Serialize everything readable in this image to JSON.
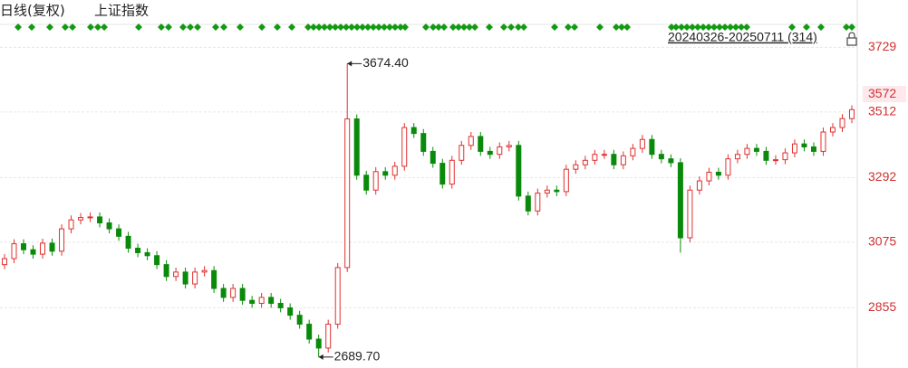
{
  "chart_data": {
    "type": "candlestick",
    "title": "日线(复权)",
    "subtitle": "上证指数",
    "range_label": "20240326-20250711 (314)",
    "up_color": "#e03030",
    "down_color": "#0a8a0a",
    "open": [
      3000,
      3020,
      3070,
      3050,
      3035,
      3072,
      3045,
      3120,
      3150,
      3158,
      3160,
      3140,
      3120,
      3095,
      3055,
      3040,
      3030,
      3000,
      2960,
      2975,
      2935,
      2975,
      2980,
      2920,
      2890,
      2920,
      2880,
      2870,
      2890,
      2870,
      2855,
      2830,
      2800,
      2750,
      2720,
      2800,
      2990,
      3489,
      3300,
      3250,
      3312,
      3300,
      3330,
      3460,
      3440,
      3380,
      3340,
      3270,
      3350,
      3400,
      3430,
      3380,
      3370,
      3395,
      3400,
      3230,
      3180,
      3240,
      3250,
      3245,
      3320,
      3335,
      3350,
      3370,
      3370,
      3335,
      3365,
      3390,
      3420,
      3370,
      3355,
      3342,
      3090,
      3250,
      3281,
      3310,
      3300,
      3355,
      3370,
      3390,
      3380,
      3350,
      3352,
      3375,
      3405,
      3395,
      3380,
      3445,
      3460,
      3490
    ],
    "high": [
      3035,
      3085,
      3085,
      3065,
      3087,
      3087,
      3135,
      3165,
      3173,
      3175,
      3175,
      3155,
      3135,
      3110,
      3070,
      3055,
      3045,
      3015,
      2990,
      2990,
      2990,
      2995,
      2995,
      2935,
      2935,
      2935,
      2895,
      2905,
      2905,
      2885,
      2870,
      2845,
      2815,
      2765,
      2815,
      3005,
      3674.4,
      3504,
      3315,
      3327,
      3327,
      3345,
      3475,
      3475,
      3455,
      3395,
      3355,
      3365,
      3415,
      3445,
      3445,
      3395,
      3410,
      3415,
      3415,
      3245,
      3255,
      3265,
      3265,
      3335,
      3350,
      3365,
      3385,
      3385,
      3385,
      3380,
      3405,
      3435,
      3435,
      3385,
      3370,
      3357,
      3265,
      3296,
      3325,
      3325,
      3370,
      3385,
      3405,
      3405,
      3395,
      3367,
      3390,
      3420,
      3420,
      3410,
      3460,
      3475,
      3505,
      3535
    ],
    "low": [
      2985,
      3005,
      3035,
      3020,
      3020,
      3030,
      3030,
      3105,
      3135,
      3143,
      3125,
      3105,
      3080,
      3040,
      3025,
      3015,
      2985,
      2945,
      2945,
      2920,
      2920,
      2960,
      2905,
      2875,
      2875,
      2865,
      2855,
      2855,
      2855,
      2840,
      2815,
      2785,
      2735,
      2689.7,
      2705,
      2785,
      2975,
      3285,
      3235,
      3235,
      3285,
      3285,
      3315,
      3425,
      3365,
      3325,
      3255,
      3255,
      3335,
      3385,
      3365,
      3355,
      3355,
      3380,
      3215,
      3165,
      3165,
      3225,
      3230,
      3230,
      3305,
      3320,
      3335,
      3355,
      3320,
      3320,
      3350,
      3375,
      3355,
      3340,
      3327,
      3040,
      3075,
      3235,
      3266,
      3285,
      3285,
      3340,
      3355,
      3365,
      3335,
      3335,
      3337,
      3360,
      3380,
      3365,
      3365,
      3430,
      3445,
      3475
    ],
    "close": [
      3020,
      3070,
      3050,
      3035,
      3072,
      3045,
      3120,
      3150,
      3158,
      3160,
      3140,
      3120,
      3095,
      3055,
      3040,
      3030,
      3000,
      2960,
      2975,
      2935,
      2975,
      2980,
      2920,
      2890,
      2920,
      2880,
      2870,
      2890,
      2870,
      2855,
      2830,
      2800,
      2750,
      2720,
      2800,
      2990,
      3489,
      3300,
      3250,
      3312,
      3300,
      3330,
      3460,
      3440,
      3380,
      3340,
      3270,
      3350,
      3400,
      3430,
      3380,
      3370,
      3395,
      3400,
      3230,
      3180,
      3240,
      3250,
      3245,
      3320,
      3335,
      3350,
      3370,
      3370,
      3335,
      3365,
      3390,
      3420,
      3370,
      3355,
      3342,
      3090,
      3250,
      3281,
      3310,
      3300,
      3355,
      3370,
      3390,
      3380,
      3350,
      3352,
      3375,
      3405,
      3395,
      3380,
      3445,
      3460,
      3490,
      3520
    ],
    "ylim": [
      2653,
      3888
    ],
    "yticks": [
      2855,
      3075,
      3292,
      3512,
      3729
    ],
    "price_marker": 3572,
    "annotations": [
      {
        "value": 3674.4,
        "label": "3674.40"
      },
      {
        "value": 2689.7,
        "label": "2689.70"
      }
    ],
    "grid": true
  }
}
